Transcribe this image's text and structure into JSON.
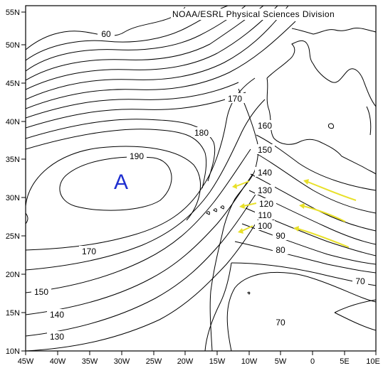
{
  "credit": "NOAA/ESRL Physical Sciences Division",
  "high_marker": "A",
  "lat_labels": [
    "55N",
    "50N",
    "45N",
    "40N",
    "35N",
    "30N",
    "25N",
    "20N",
    "15N",
    "10N"
  ],
  "lon_labels": [
    "45W",
    "40W",
    "35W",
    "30W",
    "25W",
    "20W",
    "15W",
    "10W",
    "5W",
    "0",
    "5E",
    "10E"
  ],
  "contour_labels": {
    "c60": "60",
    "c170a": "170",
    "c180": "180",
    "c190": "190",
    "c160": "160",
    "c150a": "150",
    "c140a": "140",
    "c130a": "130",
    "c120": "120",
    "c110": "110",
    "c100": "100",
    "c90": "90",
    "c80": "80",
    "c170b": "170",
    "c150b": "150",
    "c140b": "140",
    "c130b": "130",
    "c70a": "70",
    "c70b": "70"
  },
  "colors": {
    "contour": "#000000",
    "high_marker": "#1f2fd0",
    "arrows": "#e8e02a"
  },
  "wind_arrows": 6
}
